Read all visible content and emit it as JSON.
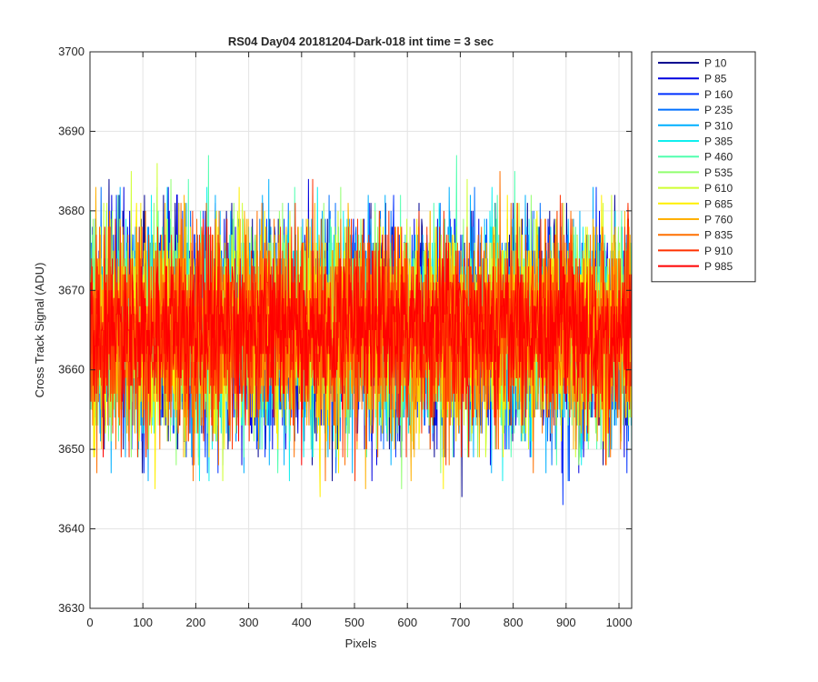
{
  "chart_data": {
    "type": "line",
    "title": "RS04 Day04 20181204-Dark-018 int time = 3 sec",
    "xlabel": "Pixels",
    "ylabel": "Cross Track Signal (ADU)",
    "xlim": [
      0,
      1024
    ],
    "ylim": [
      3630,
      3700
    ],
    "xticks": [
      0,
      100,
      200,
      300,
      400,
      500,
      600,
      700,
      800,
      900,
      1000
    ],
    "yticks": [
      3630,
      3640,
      3650,
      3660,
      3670,
      3680,
      3690,
      3700
    ],
    "grid": true,
    "legend_position": "outside-right-top",
    "n_points": 1024,
    "series": [
      {
        "name": "P 10",
        "color": "#00008f",
        "center": 3665,
        "spread": 6.5,
        "seed": 11
      },
      {
        "name": "P 85",
        "color": "#0000df",
        "center": 3665,
        "spread": 6.5,
        "seed": 23
      },
      {
        "name": "P 160",
        "color": "#0030ff",
        "center": 3665,
        "spread": 6.5,
        "seed": 37
      },
      {
        "name": "P 235",
        "color": "#0070ff",
        "center": 3665,
        "spread": 6.5,
        "seed": 41
      },
      {
        "name": "P 310",
        "color": "#00b0ff",
        "center": 3665,
        "spread": 6.5,
        "seed": 53
      },
      {
        "name": "P 385",
        "color": "#10efef",
        "center": 3665,
        "spread": 6.5,
        "seed": 67
      },
      {
        "name": "P 460",
        "color": "#50ffaf",
        "center": 3665,
        "spread": 6.5,
        "seed": 79
      },
      {
        "name": "P 535",
        "color": "#90ff6f",
        "center": 3665,
        "spread": 6.5,
        "seed": 83
      },
      {
        "name": "P 610",
        "color": "#cfff30",
        "center": 3665,
        "spread": 6.5,
        "seed": 97
      },
      {
        "name": "P 685",
        "color": "#ffef00",
        "center": 3665,
        "spread": 6.5,
        "seed": 101
      },
      {
        "name": "P 760",
        "color": "#ffb000",
        "center": 3665,
        "spread": 6.5,
        "seed": 113
      },
      {
        "name": "P 835",
        "color": "#ff7000",
        "center": 3665,
        "spread": 6.5,
        "seed": 127
      },
      {
        "name": "P 910",
        "color": "#ff3000",
        "center": 3665,
        "spread": 6.5,
        "seed": 131
      },
      {
        "name": "P 985",
        "color": "#ff0000",
        "center": 3665,
        "spread": 5.0,
        "seed": 149
      }
    ]
  }
}
